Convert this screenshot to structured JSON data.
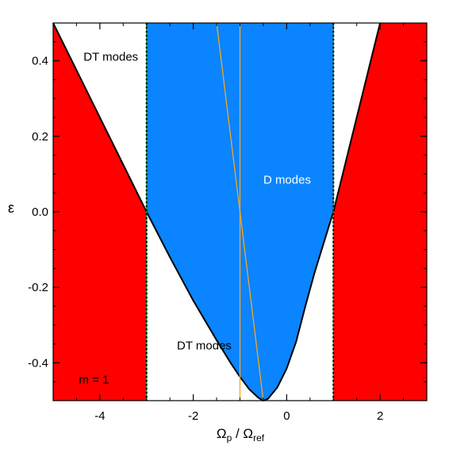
{
  "chart_data": {
    "type": "area",
    "title": "",
    "xlabel": {
      "main": "Ω",
      "sub1": "p",
      "mid": " / Ω",
      "sub2": "ref"
    },
    "ylabel": "ε",
    "xlim": [
      -5,
      3
    ],
    "ylim": [
      -0.5,
      0.5
    ],
    "xticks": [
      -4,
      -2,
      0,
      2
    ],
    "xtick_labels": [
      "-4",
      "-2",
      "0",
      "2"
    ],
    "yticks": [
      -0.4,
      -0.2,
      0.0,
      0.2,
      0.4
    ],
    "ytick_labels": [
      "-0.4",
      "-0.2",
      "0.0",
      "0.2",
      "0.4"
    ],
    "grid": false,
    "regions": [
      {
        "label": "D modes",
        "label_x": -0.5,
        "label_y": 0.075,
        "label_color": "#ffffff",
        "color": "#0a84ff"
      },
      {
        "label": "DT modes",
        "label_x": -4.35,
        "label_y": 0.4,
        "label_color": "#000000",
        "color": "#ffffff"
      },
      {
        "label": "DT modes",
        "label_x": -2.35,
        "label_y": -0.365,
        "label_color": "#000000",
        "color": "#ffffff"
      },
      {
        "label": "",
        "color": "#ff0000"
      }
    ],
    "boundary_curve": {
      "vertex_x": -0.5,
      "vertex_y": -0.5,
      "left_x": [
        -5.0,
        -4.5,
        -4.0,
        -3.5,
        -3.0,
        -2.5,
        -2.0,
        -1.5,
        -1.2,
        -1.0,
        -0.8,
        -0.6,
        -0.5
      ],
      "left_y": [
        0.5,
        0.375,
        0.25,
        0.125,
        0.0,
        -0.12,
        -0.235,
        -0.34,
        -0.4,
        -0.437,
        -0.47,
        -0.493,
        -0.5
      ],
      "right_x": [
        -0.5,
        -0.4,
        -0.2,
        0.0,
        0.2,
        0.4,
        0.6,
        0.8,
        1.0,
        1.25,
        1.5,
        1.75,
        2.0
      ],
      "right_y": [
        -0.5,
        -0.495,
        -0.465,
        -0.415,
        -0.345,
        -0.25,
        -0.16,
        -0.08,
        0.0,
        0.125,
        0.25,
        0.375,
        0.5
      ]
    },
    "vertical_lines": [
      {
        "x": -3.0,
        "style": "dotted"
      },
      {
        "x": 1.0,
        "style": "dotted"
      },
      {
        "x": -1.0,
        "style": "solid",
        "color": "#f5a623"
      }
    ],
    "orange_line": {
      "x": [
        -1.5,
        -0.5
      ],
      "y": [
        0.5,
        -0.5
      ],
      "color": "#f5a623"
    },
    "annotation": {
      "text": "m = 1",
      "x": -4.45,
      "y": -0.455
    }
  }
}
